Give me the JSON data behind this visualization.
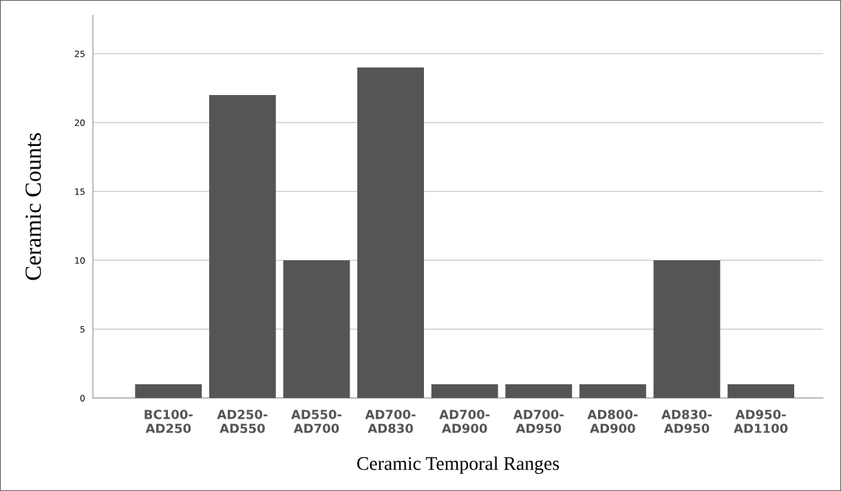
{
  "chart_data": {
    "type": "bar",
    "xlabel": "Ceramic Temporal Ranges",
    "ylabel": "Ceramic Counts",
    "categories": [
      "BC100-\nAD250",
      "AD250-\nAD550",
      "AD550-\nAD700",
      "AD700-\nAD830",
      "AD700-\nAD900",
      "AD700-\nAD950",
      "AD800-\nAD900",
      "AD830-\nAD950",
      "AD950-\nAD1100"
    ],
    "values": [
      1,
      22,
      10,
      24,
      1,
      1,
      1,
      10,
      1
    ],
    "color": "#555555",
    "ylim": [
      0,
      27.8
    ],
    "yticks": [
      0,
      5,
      10,
      15,
      20,
      25
    ],
    "grid": "y",
    "legend": false
  }
}
